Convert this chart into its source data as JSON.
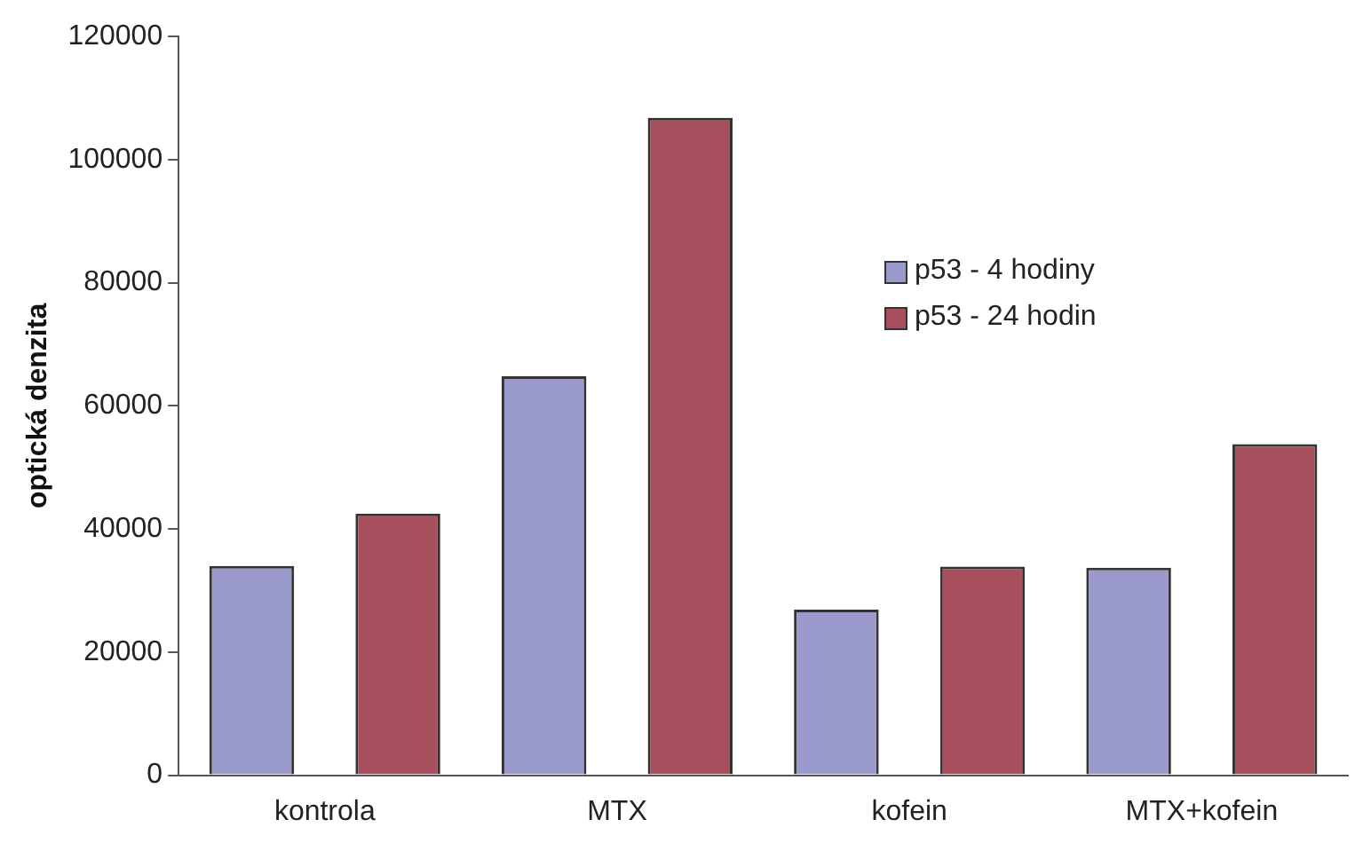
{
  "chart_data": {
    "type": "bar",
    "ylabel": "optická denzita",
    "categories": [
      "kontrola",
      "MTX",
      "kofein",
      "MTX+kofein"
    ],
    "series": [
      {
        "name": "p53 - 4 hodiny",
        "color": "#9999cc",
        "values": [
          34000,
          64800,
          26900,
          33700
        ]
      },
      {
        "name": "p53 - 24 hodin",
        "color": "#a6505e",
        "values": [
          42500,
          106800,
          33900,
          53800
        ]
      }
    ],
    "ylim": [
      0,
      120000
    ],
    "yticks": [
      0,
      20000,
      40000,
      60000,
      80000,
      100000,
      120000
    ],
    "grid": false,
    "legend": "right"
  }
}
